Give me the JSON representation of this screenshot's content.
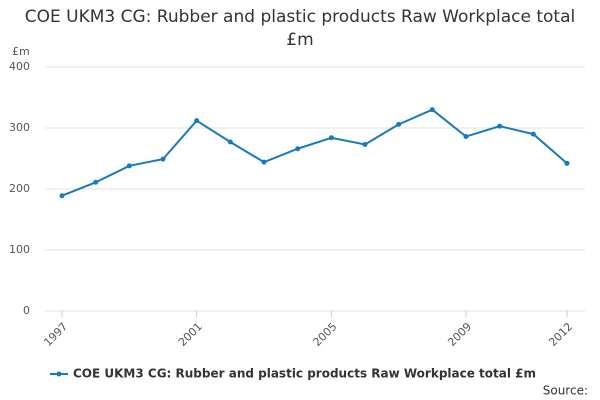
{
  "chart_data": {
    "type": "line",
    "title": "COE UKM3 CG: Rubber and plastic products Raw Workplace total £m",
    "y_label": "£m",
    "source": "Source:",
    "x": [
      1997,
      1998,
      1999,
      2000,
      2001,
      2002,
      2003,
      2004,
      2005,
      2006,
      2007,
      2008,
      2009,
      2010,
      2011,
      2012
    ],
    "series": [
      {
        "name": "COE UKM3 CG: Rubber and plastic products Raw Workplace total £m",
        "color": "#1a7ab9",
        "values": [
          189,
          211,
          238,
          249,
          312,
          277,
          244,
          266,
          284,
          273,
          306,
          330,
          286,
          303,
          290,
          242
        ]
      }
    ],
    "xlim": [
      1997,
      2012
    ],
    "xticks": [
      1997,
      2001,
      2005,
      2009,
      2012
    ],
    "ylim": [
      0,
      400
    ],
    "yticks": [
      0,
      100,
      200,
      300,
      400
    ],
    "grid": true,
    "legend": "bottom"
  }
}
